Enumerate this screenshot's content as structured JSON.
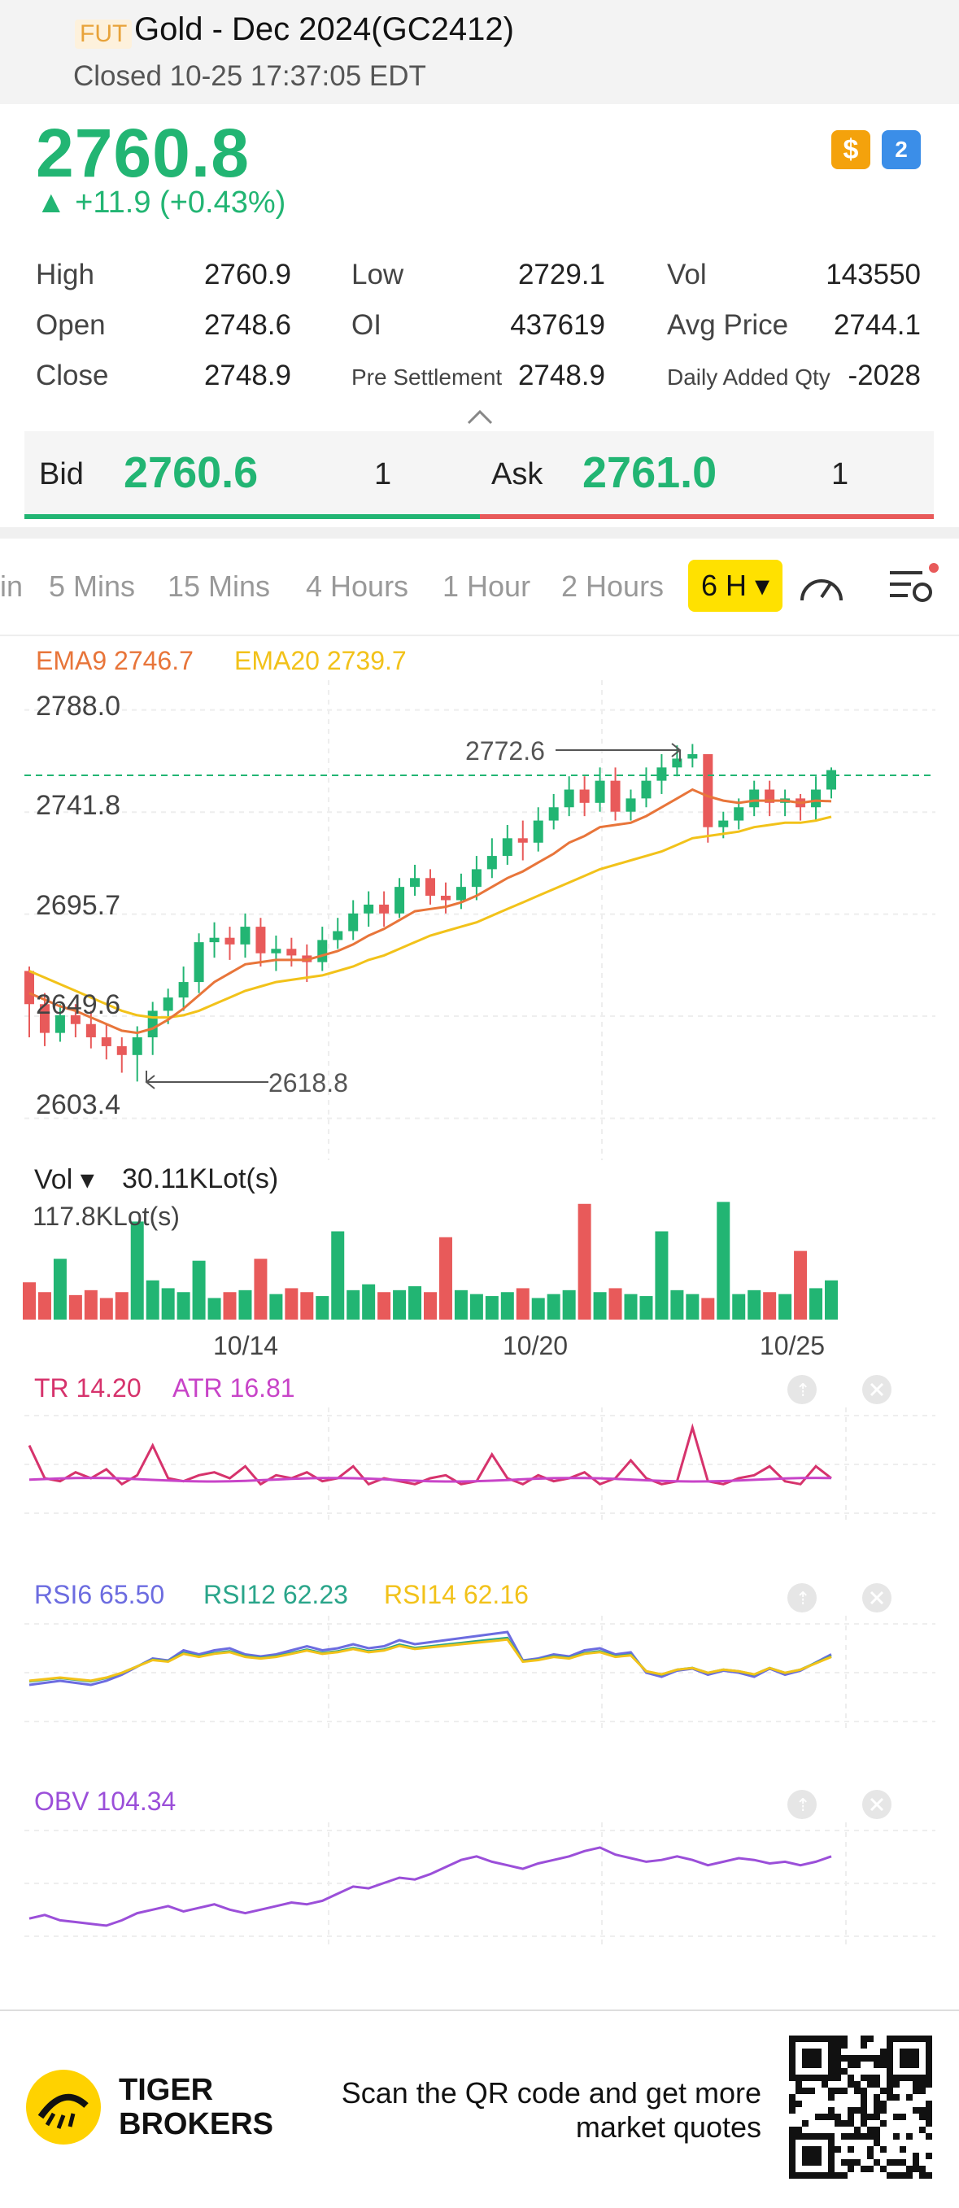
{
  "header": {
    "badge": "FUT",
    "title": "Gold - Dec 2024(GC2412)",
    "status": "Closed 10-25 17:37:05 EDT"
  },
  "quote": {
    "price": "2760.8",
    "change": "▲ +11.9 (+0.43%)",
    "icon_dollar": "$",
    "icon_level": "2"
  },
  "stats": [
    {
      "label": "High",
      "value": "2760.9"
    },
    {
      "label": "Low",
      "value": "2729.1"
    },
    {
      "label": "Vol",
      "value": "143550"
    },
    {
      "label": "Open",
      "value": "2748.6"
    },
    {
      "label": "OI",
      "value": "437619"
    },
    {
      "label": "Avg Price",
      "value": "2744.1"
    },
    {
      "label": "Close",
      "value": "2748.9"
    },
    {
      "label": "Pre Settlement",
      "value": "2748.9"
    },
    {
      "label": "Daily Added Qty",
      "value": "-2028"
    }
  ],
  "bidask": {
    "bid_label": "Bid",
    "bid_price": "2760.6",
    "bid_qty": "1",
    "ask_label": "Ask",
    "ask_price": "2761.0",
    "ask_qty": "1"
  },
  "tabs": {
    "items": [
      "in",
      "5 Mins",
      "15 Mins",
      "4 Hours",
      "1 Hour",
      "2 Hours"
    ],
    "active": "6 H ▾"
  },
  "colors": {
    "up": "#22b573",
    "down": "#e85a5a",
    "ema9": "#e8753a",
    "ema20": "#f2c21a",
    "tr": "#d6336c",
    "atr": "#c844c8",
    "rsi6": "#6c6ce0",
    "rsi12": "#2aa58a",
    "rsi14": "#f2c21a",
    "obv": "#9b4fd9"
  },
  "main_chart": {
    "ema9_label": "EMA9 2746.7",
    "ema20_label": "EMA20 2739.7",
    "y_ticks": [
      "2788.0",
      "2741.8",
      "2695.7",
      "2649.6",
      "2603.4"
    ],
    "high_label": "2772.6",
    "low_label": "2618.8"
  },
  "volume": {
    "label": "Vol ▾",
    "value": "30.11KLot(s)",
    "max_label": "117.8KLot(s)",
    "x_ticks": [
      "10/14",
      "10/20",
      "10/25"
    ]
  },
  "atr": {
    "tr_label": "TR 14.20",
    "atr_label": "ATR 16.81"
  },
  "rsi": {
    "rsi6": "RSI6 65.50",
    "rsi12": "RSI12 62.23",
    "rsi14": "RSI14 62.16"
  },
  "obv": {
    "label": "OBV 104.34"
  },
  "footer": {
    "brand_line1": "TIGER",
    "brand_line2": "BROKERS",
    "cta_line1": "Scan the QR code and get more",
    "cta_line2": "market quotes"
  },
  "chart_data": {
    "type": "candlestick",
    "candles": [
      [
        2670,
        2655,
        2672,
        2640
      ],
      [
        2655,
        2642,
        2660,
        2636
      ],
      [
        2642,
        2650,
        2655,
        2638
      ],
      [
        2650,
        2646,
        2655,
        2640
      ],
      [
        2646,
        2640,
        2652,
        2635
      ],
      [
        2640,
        2636,
        2646,
        2630
      ],
      [
        2636,
        2632,
        2640,
        2624
      ],
      [
        2632,
        2640,
        2645,
        2620
      ],
      [
        2640,
        2652,
        2656,
        2632
      ],
      [
        2652,
        2658,
        2662,
        2646
      ],
      [
        2658,
        2665,
        2672,
        2652
      ],
      [
        2665,
        2683,
        2687,
        2660
      ],
      [
        2683,
        2685,
        2692,
        2676
      ],
      [
        2685,
        2682,
        2690,
        2675
      ],
      [
        2682,
        2690,
        2696,
        2676
      ],
      [
        2690,
        2678,
        2694,
        2672
      ],
      [
        2678,
        2680,
        2686,
        2670
      ],
      [
        2680,
        2677,
        2685,
        2672
      ],
      [
        2677,
        2674,
        2682,
        2665
      ],
      [
        2674,
        2684,
        2690,
        2670
      ],
      [
        2684,
        2688,
        2694,
        2680
      ],
      [
        2688,
        2696,
        2702,
        2684
      ],
      [
        2696,
        2700,
        2706,
        2690
      ],
      [
        2700,
        2696,
        2706,
        2690
      ],
      [
        2696,
        2708,
        2712,
        2694
      ],
      [
        2708,
        2712,
        2718,
        2704
      ],
      [
        2712,
        2704,
        2716,
        2700
      ],
      [
        2704,
        2702,
        2710,
        2696
      ],
      [
        2702,
        2708,
        2714,
        2698
      ],
      [
        2708,
        2716,
        2722,
        2702
      ],
      [
        2716,
        2722,
        2730,
        2712
      ],
      [
        2722,
        2730,
        2736,
        2718
      ],
      [
        2730,
        2728,
        2738,
        2720
      ],
      [
        2728,
        2738,
        2744,
        2724
      ],
      [
        2738,
        2744,
        2750,
        2734
      ],
      [
        2744,
        2752,
        2758,
        2740
      ],
      [
        2752,
        2746,
        2758,
        2740
      ],
      [
        2746,
        2756,
        2762,
        2742
      ],
      [
        2756,
        2742,
        2762,
        2738
      ],
      [
        2742,
        2748,
        2752,
        2738
      ],
      [
        2748,
        2756,
        2762,
        2744
      ],
      [
        2756,
        2762,
        2768,
        2750
      ],
      [
        2762,
        2766,
        2772,
        2758
      ],
      [
        2766,
        2768,
        2772.6,
        2762
      ],
      [
        2768,
        2735,
        2768,
        2728
      ],
      [
        2735,
        2738,
        2742,
        2730
      ],
      [
        2738,
        2744,
        2748,
        2734
      ],
      [
        2744,
        2752,
        2756,
        2740
      ],
      [
        2752,
        2746,
        2756,
        2740
      ],
      [
        2746,
        2748,
        2752,
        2740
      ],
      [
        2748,
        2744,
        2750,
        2738
      ],
      [
        2744,
        2752,
        2758,
        2738
      ],
      [
        2752,
        2760.8,
        2762,
        2748
      ]
    ],
    "ema9": [
      2660,
      2657,
      2654,
      2652,
      2649,
      2646,
      2643,
      2642,
      2644,
      2648,
      2653,
      2659,
      2665,
      2669,
      2673,
      2674,
      2675,
      2675,
      2675,
      2677,
      2679,
      2682,
      2686,
      2689,
      2693,
      2697,
      2698,
      2699,
      2701,
      2704,
      2708,
      2712,
      2715,
      2719,
      2723,
      2728,
      2731,
      2735,
      2736,
      2737,
      2740,
      2744,
      2748,
      2752,
      2749,
      2747,
      2746,
      2747,
      2747,
      2747,
      2746,
      2747,
      2746.7
    ],
    "ema20": [
      2670,
      2667,
      2664,
      2661,
      2658,
      2655,
      2652,
      2650,
      2649,
      2649,
      2650,
      2652,
      2655,
      2658,
      2661,
      2663,
      2665,
      2666,
      2667,
      2668,
      2670,
      2672,
      2675,
      2677,
      2680,
      2683,
      2686,
      2688,
      2690,
      2692,
      2695,
      2698,
      2701,
      2704,
      2707,
      2710,
      2713,
      2716,
      2718,
      2720,
      2722,
      2724,
      2727,
      2730,
      2731,
      2732,
      2733,
      2735,
      2736,
      2737,
      2737,
      2738,
      2739.7
    ],
    "volume_ylim": [
      0,
      117.8
    ],
    "y_ticks": [
      2788.0,
      2741.8,
      2695.7,
      2649.6,
      2603.4
    ],
    "ylim": [
      2590,
      2800
    ],
    "x_ticks": [
      "10/14",
      "10/20",
      "10/25"
    ]
  }
}
